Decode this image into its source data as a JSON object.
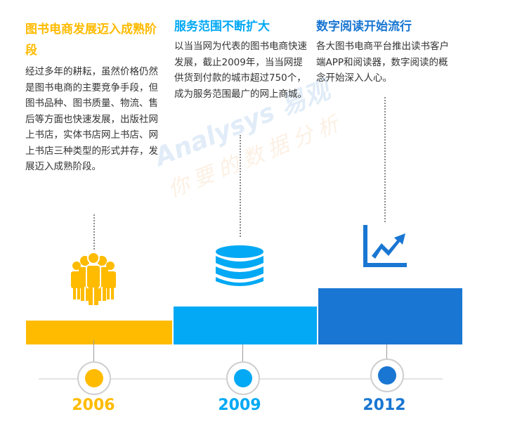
{
  "colors": {
    "stage1": "#FFBB00",
    "stage2": "#03A9F4",
    "stage3": "#1976D2",
    "text": "#333333"
  },
  "stages": [
    {
      "title": "图书电商发展迈入成熟阶段",
      "desc": "经过多年的耕耘，虽然价格仍然是图书电商的主要竞争手段，但图书品种、图书质量、物流、售后等方面也快速发展，出版社网上书店，实体书店网上书店、网上书店三种类型的形式并存，发展迈入成熟阶段。",
      "year": "2006",
      "icon": "people-group-icon"
    },
    {
      "title": "服务范围不断扩大",
      "desc": "以当当网为代表的图书电商快速发展，截止2009年，当当网提供货到付款的城市超过750个，成为服务范围最广的网上商城。",
      "year": "2009",
      "icon": "database-stack-icon"
    },
    {
      "title": "数字阅读开始流行",
      "desc": "各大图书电商平台推出读书客户端APP和阅读器，数字阅读的概念开始深入人心。",
      "year": "2012",
      "icon": "rising-chart-icon"
    }
  ],
  "watermark": {
    "line1": "Analysys 易观",
    "line2": "你要的数据分析"
  }
}
